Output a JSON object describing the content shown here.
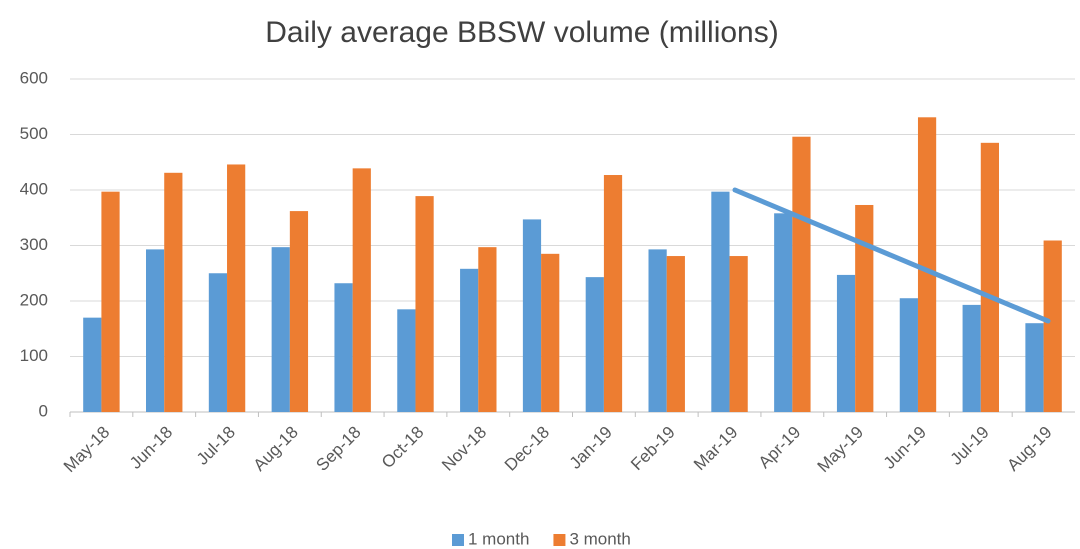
{
  "chart_data": {
    "type": "bar",
    "title": "Daily average BBSW volume (millions)",
    "categories": [
      "May-18",
      "Jun-18",
      "Jul-18",
      "Aug-18",
      "Sep-18",
      "Oct-18",
      "Nov-18",
      "Dec-18",
      "Jan-19",
      "Feb-19",
      "Mar-19",
      "Apr-19",
      "May-19",
      "Jun-19",
      "Jul-19",
      "Aug-19"
    ],
    "series": [
      {
        "name": "1 month",
        "color": "#5b9bd5",
        "values": [
          170,
          293,
          250,
          297,
          232,
          185,
          258,
          347,
          243,
          293,
          397,
          358,
          247,
          205,
          193,
          160
        ]
      },
      {
        "name": "3 month",
        "color": "#ed7d31",
        "values": [
          397,
          431,
          446,
          362,
          439,
          389,
          297,
          285,
          427,
          281,
          281,
          496,
          373,
          531,
          485,
          309
        ]
      }
    ],
    "ylim": [
      0,
      600
    ],
    "yticks": [
      0,
      100,
      200,
      300,
      400,
      500,
      600
    ],
    "grid": true,
    "legend": "bottom"
  }
}
